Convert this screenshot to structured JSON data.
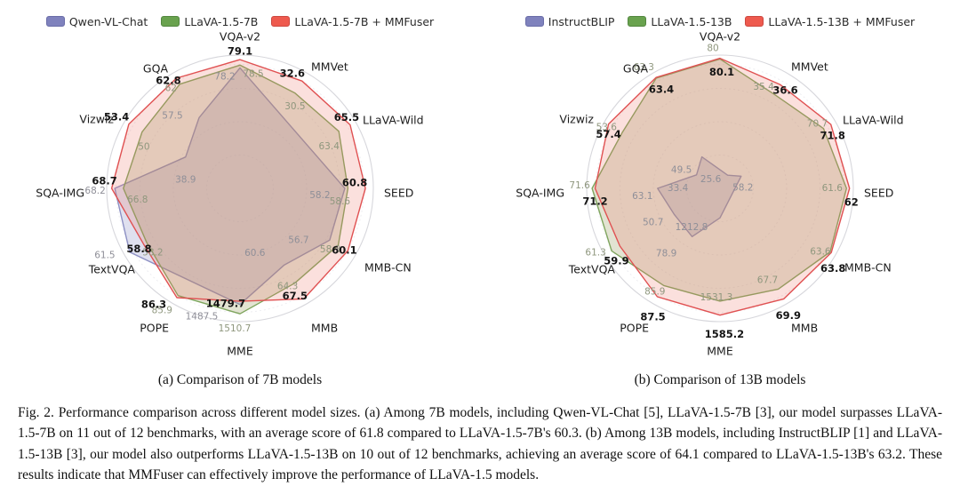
{
  "figure": {
    "subcaptions": {
      "a": "(a) Comparison of 7B models",
      "b": "(b) Comparison of 13B models"
    },
    "caption": "Fig. 2.  Performance comparison across different model sizes. (a) Among 7B models, including Qwen-VL-Chat [5], LLaVA-1.5-7B [3], our model surpasses LLaVA-1.5-7B on 11 out of 12 benchmarks, with an average score of 61.8 compared to LLaVA-1.5-7B's 60.3. (b) Among 13B models, including InstructBLIP [1] and LLaVA-1.5-13B [3], our model also outperforms LLaVA-1.5-13B on 10 out of 12 benchmarks, achieving an average score of 64.1 compared to LLaVA-1.5-13B's 63.2. These results indicate that MMFuser can effectively improve the performance of LLaVA-1.5 models."
  },
  "colors": {
    "purple": {
      "stroke": "#8d90c4",
      "fill": "rgba(138,140,195,0.27)",
      "swatch": "#7f82bd",
      "swatch_border": "#6a6da8"
    },
    "green": {
      "stroke": "#7fa55e",
      "fill": "rgba(150,155,95,0.28)",
      "swatch": "#69a24e",
      "swatch_border": "#538740"
    },
    "red": {
      "stroke": "#e05152",
      "fill": "rgba(235,115,100,0.22)",
      "swatch": "#ee5a4e",
      "swatch_border": "#cc4840"
    }
  },
  "chart_data": [
    {
      "type": "radar",
      "title": "(a) Comparison of 7B models",
      "legend_position": "top",
      "grid": "circular",
      "categories": [
        "VQA-v2",
        "MMVet",
        "LLaVA-Wild",
        "SEED",
        "MMB-CN",
        "MMB",
        "MME",
        "POPE",
        "TextVQA",
        "SQA-IMG",
        "Vizwiz",
        "GQA"
      ],
      "series": [
        {
          "name": "Qwen-VL-Chat",
          "color": "purple",
          "emphasis": false,
          "values": [
            78.2,
            null,
            null,
            58.2,
            56.7,
            60.6,
            1487.5,
            null,
            61.5,
            68.2,
            38.9,
            57.5
          ]
        },
        {
          "name": "LLaVA-1.5-7B",
          "color": "green",
          "emphasis": false,
          "values": [
            78.5,
            30.5,
            63.4,
            58.6,
            58.3,
            64.3,
            1510.7,
            85.9,
            58.2,
            66.8,
            50,
            62
          ]
        },
        {
          "name": "LLaVA-1.5-7B + MMFuser",
          "color": "red",
          "emphasis": true,
          "values": [
            79.1,
            32.6,
            65.5,
            60.8,
            60.1,
            67.5,
            1479.7,
            86.3,
            58.8,
            68.7,
            53.4,
            62.8
          ]
        }
      ],
      "axis_ranges": [
        [
          65,
          79.6
        ],
        [
          14,
          34
        ],
        [
          45,
          66.5
        ],
        [
          45,
          61.8
        ],
        [
          40,
          61.5
        ],
        [
          45,
          68.5
        ],
        [
          1200,
          1530
        ],
        [
          65,
          87.5
        ],
        [
          40,
          62.5
        ],
        [
          48,
          69.5
        ],
        [
          25,
          54.5
        ],
        [
          48,
          63.5
        ]
      ]
    },
    {
      "type": "radar",
      "title": "(b) Comparison of 13B models",
      "legend_position": "top",
      "grid": "circular",
      "categories": [
        "VQA-v2",
        "MMVet",
        "LLaVA-Wild",
        "SEED",
        "MMB-CN",
        "MMB",
        "MME",
        "POPE",
        "TextVQA",
        "SQA-IMG",
        "Vizwiz",
        "GQA"
      ],
      "series": [
        {
          "name": "InstructBLIP",
          "color": "purple",
          "emphasis": false,
          "values": [
            null,
            25.6,
            58.2,
            null,
            null,
            null,
            1212.8,
            78.9,
            50.7,
            63.1,
            33.4,
            49.5
          ]
        },
        {
          "name": "LLaVA-1.5-13B",
          "color": "green",
          "emphasis": false,
          "values": [
            80,
            35.4,
            70.7,
            61.6,
            63.6,
            67.7,
            1531.3,
            85.9,
            61.3,
            71.6,
            53.6,
            63.3
          ]
        },
        {
          "name": "LLaVA-1.5-13B + MMFuser",
          "color": "red",
          "emphasis": true,
          "values": [
            80.1,
            36.6,
            71.8,
            62,
            63.8,
            69.9,
            1585.2,
            87.5,
            59.9,
            71.2,
            57.4,
            63.4
          ]
        }
      ],
      "axis_ranges": [
        [
          60,
          80.6
        ],
        [
          24,
          38
        ],
        [
          55,
          72.5
        ],
        [
          45,
          62.5
        ],
        [
          45,
          64.5
        ],
        [
          45,
          71
        ],
        [
          1100,
          1610
        ],
        [
          72,
          88.5
        ],
        [
          43,
          62.5
        ],
        [
          55,
          72.3
        ],
        [
          27,
          58.5
        ],
        [
          44,
          64.2
        ]
      ]
    }
  ]
}
